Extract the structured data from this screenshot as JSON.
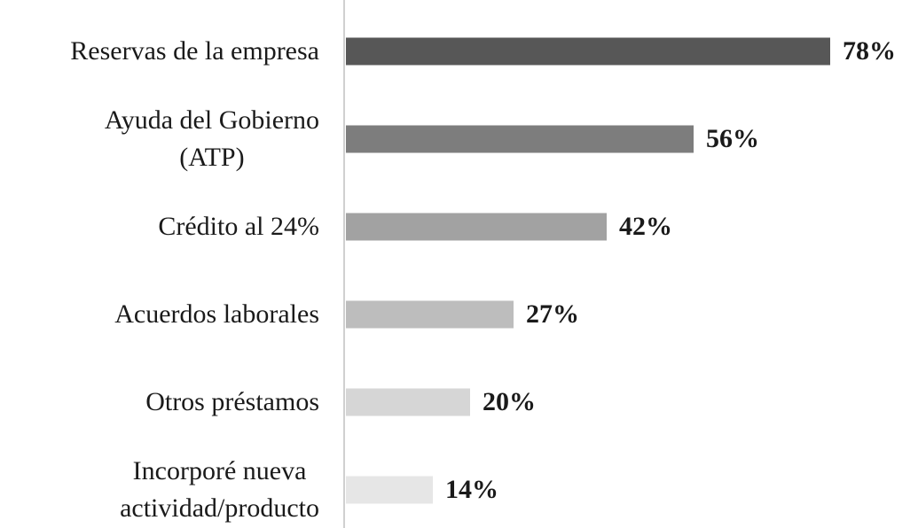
{
  "chart_data": {
    "type": "bar",
    "orientation": "horizontal",
    "categories": [
      "Reservas de la empresa",
      "Ayuda del Gobierno\n(ATP)",
      "Crédito al 24%",
      "Acuerdos laborales",
      "Otros préstamos",
      "Incorporé nueva\nactividad/producto"
    ],
    "values": [
      78,
      56,
      42,
      27,
      20,
      14
    ],
    "value_labels": [
      "78%",
      "56%",
      "42%",
      "27%",
      "20%",
      "14%"
    ],
    "colors": [
      "#575757",
      "#7d7d7d",
      "#a2a2a2",
      "#bdbdbd",
      "#d6d6d6",
      "#e6e6e6"
    ]
  }
}
